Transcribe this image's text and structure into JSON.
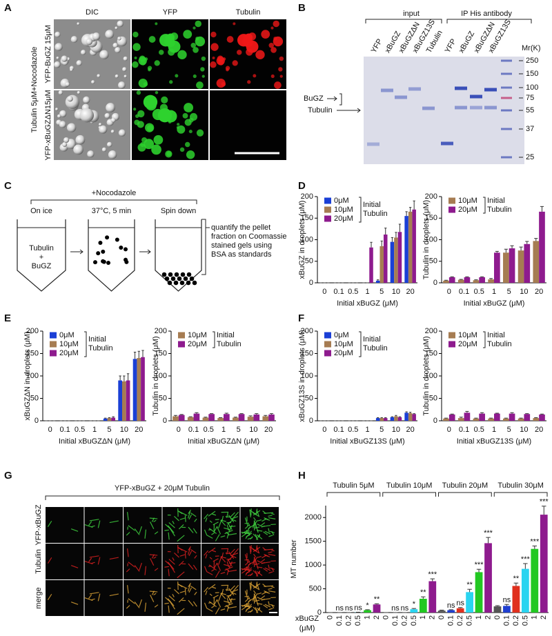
{
  "figure": {
    "panel_labels": [
      "A",
      "B",
      "C",
      "D",
      "E",
      "F",
      "G",
      "H"
    ],
    "a": {
      "columns": [
        "DIC",
        "YFP",
        "Tubulin"
      ],
      "rows": [
        "YFP-BuGZ 15μM",
        "YFP-xBuGZΔN15μM"
      ],
      "condition": "Tubulin 5μM+Nocodazole"
    },
    "b": {
      "groups": [
        "input",
        "IP His antibody"
      ],
      "lanes": [
        "YFP",
        "xBuGZ",
        "xBuGZΔN",
        "xBuGZ13S",
        "Tubulin",
        "YFP",
        "xBuGZ",
        "xBuGZΔN",
        "xBuGZ13S"
      ],
      "marker_title": "Mr(K)",
      "markers": [
        250,
        150,
        100,
        75,
        55,
        37,
        25
      ],
      "bands": [
        "BuGZ",
        "Tubulin"
      ]
    },
    "c": {
      "treatment": "+Nocodazole",
      "steps": [
        "On ice",
        "37°C, 5 min",
        "Spin down"
      ],
      "tube": [
        "Tubulin",
        "+",
        "BuGZ"
      ],
      "note": [
        "quantify the pellet",
        "fraction on Coomassie",
        "stained gels using",
        "BSA as standards"
      ]
    },
    "g": {
      "title": "YFP-xBuGZ + 20μM Tubulin",
      "rows": [
        "YFP-xBuGZ",
        "Tubulin",
        "merge"
      ]
    }
  },
  "chart_data": [
    {
      "type": "bar",
      "ylabel": "xBuGZ in droplets (μM)",
      "xlabel": "Initial xBuGZ (μM)",
      "legend_title": [
        "Initial",
        "Tubulin"
      ],
      "categories": [
        "0",
        "0.1",
        "0.5",
        "1",
        "5",
        "10",
        "20"
      ],
      "ylim": [
        0,
        200
      ],
      "yticks": [
        0,
        50,
        100,
        150,
        200
      ],
      "series": [
        {
          "name": "0μM",
          "color": "#1a3fd6",
          "values": [
            0,
            0,
            0,
            0,
            5,
            95,
            155
          ],
          "errors": [
            0,
            0,
            0,
            0,
            2,
            10,
            10
          ]
        },
        {
          "name": "10μM",
          "color": "#a67c52",
          "values": [
            0,
            0,
            0,
            0,
            85,
            105,
            165
          ],
          "errors": [
            0,
            0,
            0,
            0,
            12,
            12,
            10
          ]
        },
        {
          "name": "20μM",
          "color": "#8e1b8e",
          "values": [
            0,
            0,
            0,
            82,
            112,
            118,
            170
          ],
          "errors": [
            0,
            0,
            0,
            12,
            15,
            18,
            20
          ]
        }
      ]
    },
    {
      "type": "bar",
      "ylabel": "Tubulin in droplets (μM)",
      "xlabel": "Initial xBuGZ (μM)",
      "legend_title": [
        "Initial",
        "Tubulin"
      ],
      "categories": [
        "0",
        "0.1",
        "0.5",
        "1",
        "5",
        "10",
        "20"
      ],
      "ylim": [
        0,
        200
      ],
      "yticks": [
        0,
        50,
        100,
        150,
        200
      ],
      "series": [
        {
          "name": "10μM",
          "color": "#a67c52",
          "values": [
            5,
            7,
            6,
            8,
            70,
            75,
            97
          ],
          "errors": [
            1,
            1,
            1,
            2,
            8,
            8,
            6
          ]
        },
        {
          "name": "20μM",
          "color": "#8e1b8e",
          "values": [
            13,
            13,
            13,
            70,
            80,
            90,
            165
          ],
          "errors": [
            1,
            1,
            1,
            3,
            6,
            6,
            12
          ]
        }
      ]
    },
    {
      "type": "bar",
      "ylabel": "xBuGZΔN in droplets (μM)",
      "xlabel": "Initial xBuGZΔN (μM)",
      "legend_title": [
        "Initial",
        "Tubulin"
      ],
      "categories": [
        "0",
        "0.1",
        "0.5",
        "1",
        "5",
        "10",
        "20"
      ],
      "ylim": [
        0,
        200
      ],
      "yticks": [
        0,
        50,
        100,
        150,
        200
      ],
      "series": [
        {
          "name": "0μM",
          "color": "#1a3fd6",
          "values": [
            0,
            0,
            0,
            0,
            5,
            90,
            138
          ],
          "errors": [
            0,
            0,
            0,
            0,
            1,
            10,
            15
          ]
        },
        {
          "name": "10μM",
          "color": "#a67c52",
          "values": [
            0,
            0,
            0,
            0,
            6,
            88,
            140
          ],
          "errors": [
            0,
            0,
            0,
            0,
            1,
            12,
            15
          ]
        },
        {
          "name": "20μM",
          "color": "#8e1b8e",
          "values": [
            0,
            0,
            0,
            0,
            7,
            90,
            142
          ],
          "errors": [
            0,
            0,
            0,
            0,
            2,
            15,
            15
          ]
        }
      ]
    },
    {
      "type": "bar",
      "ylabel": "Tubulin in droplets (μM)",
      "xlabel": "Initial xBuGZΔN (μM)",
      "legend_title": [
        "Initial",
        "Tubulin"
      ],
      "categories": [
        "0",
        "0.1",
        "0.5",
        "1",
        "5",
        "10",
        "20"
      ],
      "ylim": [
        0,
        200
      ],
      "yticks": [
        0,
        50,
        100,
        150,
        200
      ],
      "series": [
        {
          "name": "10μM",
          "color": "#a67c52",
          "values": [
            10,
            8,
            7,
            6,
            7,
            9,
            10
          ],
          "errors": [
            2,
            1,
            1,
            1,
            1,
            2,
            2
          ]
        },
        {
          "name": "20μM",
          "color": "#8e1b8e",
          "values": [
            13,
            16,
            15,
            15,
            15,
            14,
            14
          ],
          "errors": [
            1,
            2,
            1,
            2,
            1,
            2,
            2
          ]
        }
      ]
    },
    {
      "type": "bar",
      "ylabel": "xBuGZ13S in droplets (μM)",
      "xlabel": "Initial xBuGZ13S (μM)",
      "legend_title": [
        "Initial",
        "Tubulin"
      ],
      "categories": [
        "0",
        "0.1",
        "0.5",
        "1",
        "5",
        "10",
        "20"
      ],
      "ylim": [
        0,
        200
      ],
      "yticks": [
        0,
        50,
        100,
        150,
        200
      ],
      "series": [
        {
          "name": "0μM",
          "color": "#1a3fd6",
          "values": [
            0,
            0,
            0,
            0,
            6,
            8,
            18
          ],
          "errors": [
            0,
            0,
            0,
            0,
            1,
            1,
            2
          ]
        },
        {
          "name": "10μM",
          "color": "#a67c52",
          "values": [
            0,
            0,
            0,
            0,
            6,
            10,
            17
          ],
          "errors": [
            0,
            0,
            0,
            0,
            1,
            2,
            2
          ]
        },
        {
          "name": "20μM",
          "color": "#8e1b8e",
          "values": [
            0,
            0,
            0,
            0,
            6,
            8,
            15
          ],
          "errors": [
            0,
            0,
            0,
            0,
            1,
            1,
            1
          ]
        }
      ]
    },
    {
      "type": "bar",
      "ylabel": "Tubulin in droplets (μM)",
      "xlabel": "Initial xBuGZ13S (μM)",
      "legend_title": [
        "Initial",
        "Tubulin"
      ],
      "categories": [
        "0",
        "0.1",
        "0.5",
        "1",
        "5",
        "10",
        "20"
      ],
      "ylim": [
        0,
        200
      ],
      "yticks": [
        0,
        50,
        100,
        150,
        200
      ],
      "series": [
        {
          "name": "10μM",
          "color": "#a67c52",
          "values": [
            5,
            6,
            5,
            5,
            5,
            5,
            6
          ],
          "errors": [
            1,
            2,
            1,
            1,
            1,
            1,
            1
          ]
        },
        {
          "name": "20μM",
          "color": "#8e1b8e",
          "values": [
            14,
            18,
            16,
            16,
            16,
            15,
            14
          ],
          "errors": [
            1,
            3,
            2,
            1,
            2,
            1,
            1
          ]
        }
      ]
    },
    {
      "type": "bar",
      "ylabel": "MT number",
      "xlabel": [
        "xBuGZ",
        "(μM)"
      ],
      "groups": [
        "Tubulin 5μM",
        "Tubulin 10μM",
        "Tubulin 20μM",
        "Tubulin 30μM"
      ],
      "categories": [
        "0",
        "0.1",
        "0.2",
        "0.5",
        "1",
        "2",
        "0",
        "0.1",
        "0.2",
        "0.5",
        "1",
        "2",
        "0",
        "0.1",
        "0.2",
        "0.5",
        "1",
        "2",
        "0",
        "0.1",
        "0.2",
        "0.5",
        "1",
        "2"
      ],
      "values": [
        0,
        0,
        0,
        5,
        50,
        170,
        0,
        0,
        0,
        70,
        290,
        660,
        40,
        50,
        90,
        430,
        850,
        1460,
        130,
        140,
        560,
        920,
        1340,
        2060
      ],
      "errors": [
        0,
        0,
        0,
        3,
        10,
        15,
        0,
        0,
        0,
        15,
        40,
        50,
        10,
        10,
        15,
        60,
        60,
        120,
        15,
        30,
        60,
        110,
        60,
        180
      ],
      "significance": [
        null,
        "ns",
        "ns",
        "ns",
        "*",
        "**",
        null,
        "ns",
        "ns",
        "*",
        "**",
        "***",
        null,
        "ns",
        "ns",
        "**",
        "***",
        "***",
        null,
        "ns",
        "**",
        "***",
        "***",
        "***"
      ],
      "colors": [
        "#555555",
        "#1f3fd0",
        "#e0301e",
        "#2ad4f0",
        "#22c822",
        "#8e1b8e"
      ],
      "ylim": [
        0,
        2250
      ],
      "yticks": [
        0,
        500,
        1000,
        1500,
        2000
      ]
    }
  ]
}
